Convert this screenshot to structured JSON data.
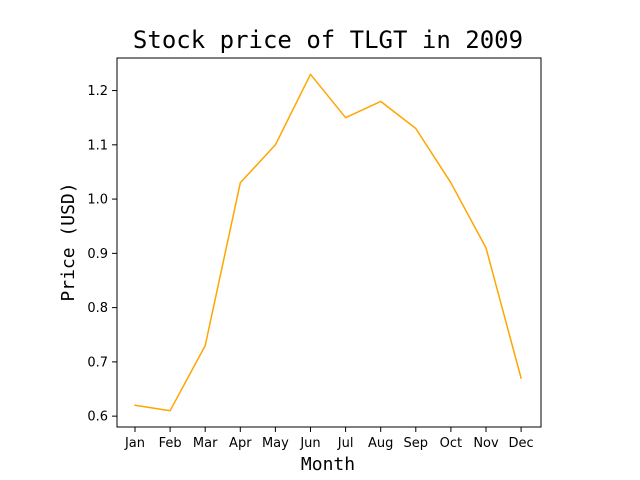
{
  "chart_data": {
    "type": "line",
    "title": "Stock price of TLGT in 2009",
    "xlabel": "Month",
    "ylabel": "Price (USD)",
    "categories": [
      "Jan",
      "Feb",
      "Mar",
      "Apr",
      "May",
      "Jun",
      "Jul",
      "Aug",
      "Sep",
      "Oct",
      "Nov",
      "Dec"
    ],
    "series": [
      {
        "values": [
          0.62,
          0.61,
          0.73,
          1.03,
          1.1,
          1.23,
          1.15,
          1.18,
          1.13,
          1.03,
          0.91,
          0.67
        ]
      }
    ],
    "ylim": [
      0.58,
      1.26
    ],
    "yticks": [
      "0.6",
      "0.7",
      "0.8",
      "0.9",
      "1.0",
      "1.1",
      "1.2"
    ],
    "line_color": "#ffa500",
    "grid": false,
    "legend": "none"
  }
}
